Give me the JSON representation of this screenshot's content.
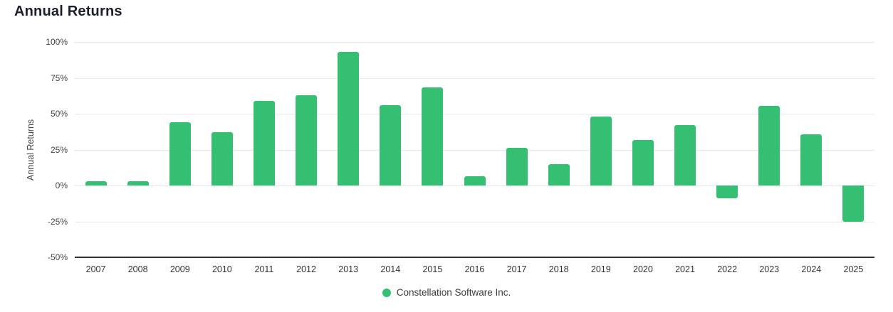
{
  "page": {
    "title": "Annual Returns"
  },
  "legend": {
    "label": "Constellation Software Inc."
  },
  "colors": {
    "bar": "#34bf73",
    "title_text": "#1b202c",
    "axis_text": "#454545",
    "year_text": "#333333",
    "legend_text": "#3c3c3c",
    "gridline": "#e9e9eb",
    "axis_line": "#333639"
  },
  "chart_data": {
    "type": "bar",
    "title": "Annual Returns",
    "xlabel": "",
    "ylabel": "Annual Returns",
    "categories": [
      "2007",
      "2008",
      "2009",
      "2010",
      "2011",
      "2012",
      "2013",
      "2014",
      "2015",
      "2016",
      "2017",
      "2018",
      "2019",
      "2020",
      "2021",
      "2022",
      "2023",
      "2024",
      "2025"
    ],
    "series": [
      {
        "name": "Constellation Software Inc.",
        "values": [
          3,
          3,
          44,
          37,
          59,
          63,
          93,
          56,
          68.5,
          6.5,
          26,
          15,
          48,
          31.5,
          42,
          -9,
          55.5,
          35.5,
          -25
        ]
      }
    ],
    "y_ticks": [
      100,
      75,
      50,
      25,
      0,
      -25,
      -50
    ],
    "y_tick_suffix": "%",
    "ylim": [
      -50,
      100
    ],
    "grid": "horizontal",
    "legend_position": "bottom-center",
    "bar_color": "#34bf73"
  }
}
